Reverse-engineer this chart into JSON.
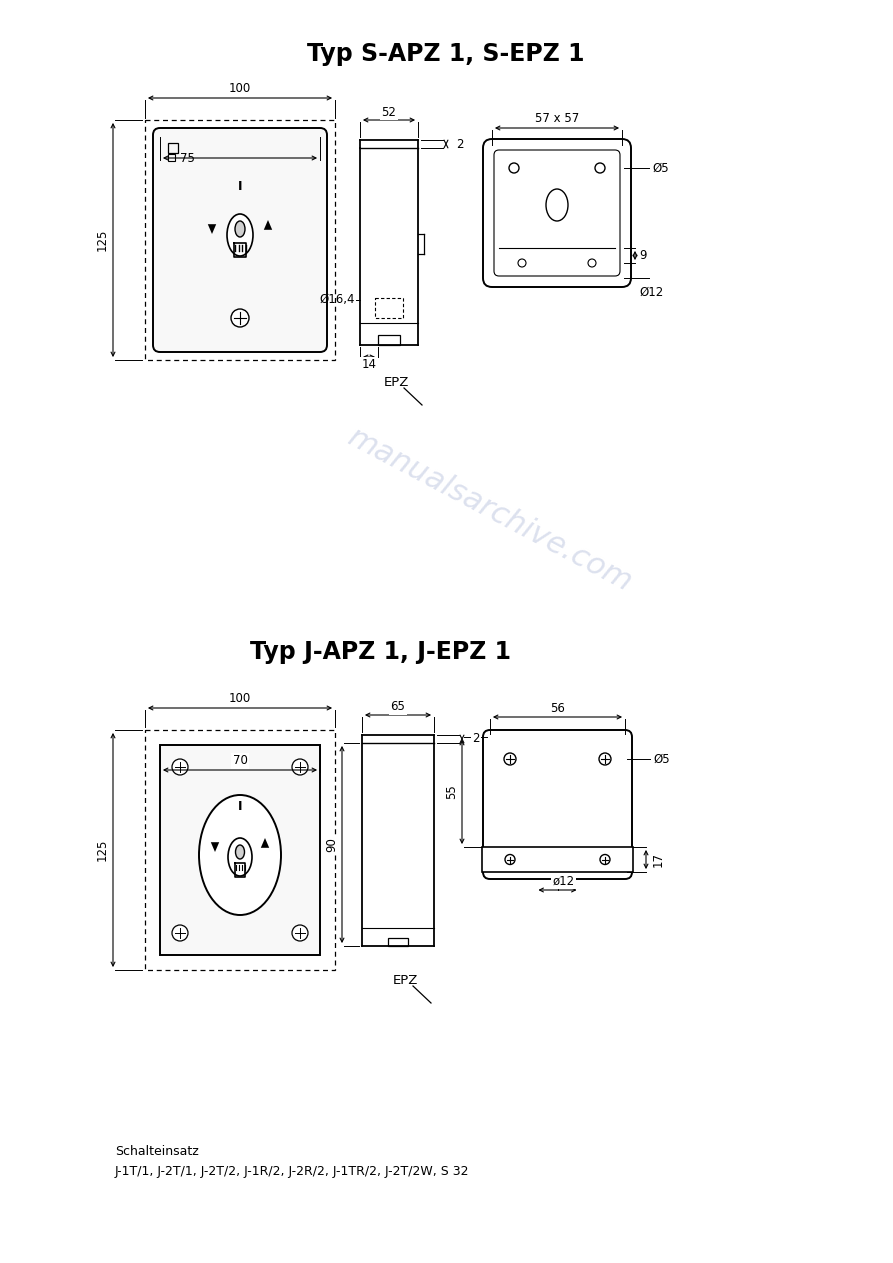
{
  "title1": "Typ S-APZ 1, S-EPZ 1",
  "title2": "Typ J-APZ 1, J-EPZ 1",
  "footer_line1": "Schalteinsatz",
  "footer_line2": "J-1T/1, J-2T/1, J-2T/2, J-1R/2, J-2R/2, J-1TR/2, J-2T/2W, S 32",
  "bg_color": "#ffffff",
  "line_color": "#000000",
  "watermark_color": "#c0c8e0",
  "title_fontsize": 17,
  "label_fontsize": 9,
  "dim_fontsize": 8.5
}
